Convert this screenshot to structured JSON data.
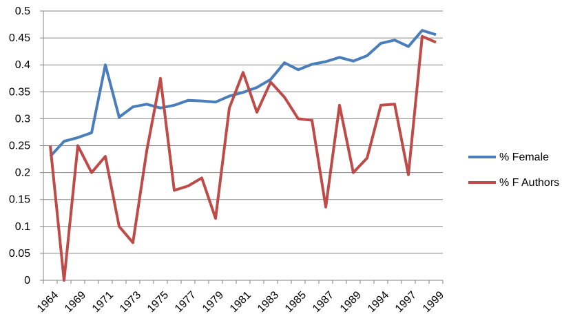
{
  "chart_data": {
    "type": "line",
    "title": "",
    "xlabel": "",
    "ylabel": "",
    "ylim": [
      0,
      0.5
    ],
    "yticks": [
      "0",
      "0.05",
      "0.1",
      "0.15",
      "0.2",
      "0.25",
      "0.3",
      "0.35",
      "0.4",
      "0.45",
      "0.5"
    ],
    "ytick_values": [
      0,
      0.05,
      0.1,
      0.15,
      0.2,
      0.25,
      0.3,
      0.35,
      0.4,
      0.45,
      0.5
    ],
    "grid": true,
    "legend_position": "right",
    "categories": [
      "1964",
      "",
      "1969",
      "",
      "1971",
      "",
      "1973",
      "",
      "1975",
      "",
      "1977",
      "",
      "1979",
      "",
      "1981",
      "",
      "1983",
      "",
      "1985",
      "",
      "1987",
      "",
      "1989",
      "",
      "1994",
      "",
      "1997",
      "",
      "1999"
    ],
    "series": [
      {
        "name": "% Female",
        "color": "#4a7ebb",
        "values": [
          0.23,
          0.258,
          0.265,
          0.274,
          0.4,
          0.303,
          0.322,
          0.327,
          0.32,
          0.325,
          0.334,
          0.333,
          0.331,
          0.342,
          0.349,
          0.358,
          0.373,
          0.404,
          0.391,
          0.401,
          0.406,
          0.414,
          0.407,
          0.417,
          0.44,
          0.446,
          0.434,
          0.464,
          0.456
        ]
      },
      {
        "name": "% F Authors",
        "color": "#be4b48",
        "values": [
          0.25,
          0.0,
          0.25,
          0.2,
          0.23,
          0.1,
          0.07,
          0.24,
          0.375,
          0.167,
          0.175,
          0.19,
          0.115,
          0.32,
          0.386,
          0.312,
          0.368,
          0.34,
          0.3,
          0.297,
          0.136,
          0.325,
          0.2,
          0.227,
          0.325,
          0.327,
          0.196,
          0.453,
          0.442
        ]
      }
    ]
  }
}
